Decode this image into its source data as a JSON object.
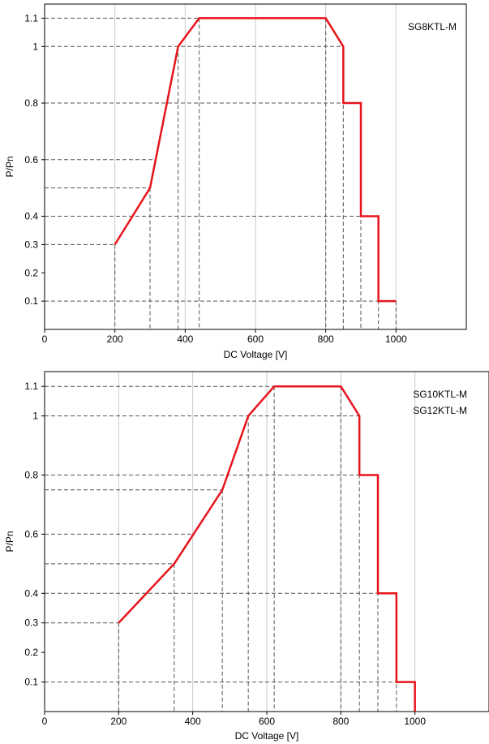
{
  "chart_data": [
    {
      "type": "line",
      "annotation": [
        "SG8KTL-M"
      ],
      "xlabel": "DC Voltage [V]",
      "ylabel": "P/Pn",
      "xlim": [
        0,
        1200
      ],
      "ylim": [
        0,
        1.15
      ],
      "x_ticks": [
        0,
        200,
        400,
        600,
        800,
        1000
      ],
      "x_gridlines": [
        200,
        300,
        380,
        400,
        440,
        600,
        800,
        850,
        900,
        950,
        1000
      ],
      "y_ticks": [
        0.1,
        0.2,
        0.3,
        0.4,
        0.6,
        0.8,
        1,
        1.1
      ],
      "grid": true,
      "line_color": "#e8141b",
      "series": [
        {
          "x": [
            200,
            300,
            380,
            440,
            800,
            850,
            850,
            900,
            900,
            950,
            950,
            1000
          ],
          "y": [
            0.3,
            0.5,
            1.0,
            1.1,
            1.1,
            1.0,
            0.8,
            0.8,
            0.4,
            0.4,
            0.1,
            0.1
          ]
        }
      ]
    },
    {
      "type": "line",
      "annotation": [
        "SG10KTL-M",
        "SG12KTL-M"
      ],
      "xlabel": "DC Voltage [V]",
      "ylabel": "P/Pn",
      "xlim": [
        0,
        1200
      ],
      "ylim": [
        0,
        1.15
      ],
      "x_ticks": [
        0,
        200,
        400,
        600,
        800,
        1000
      ],
      "x_gridlines": [
        200,
        350,
        400,
        480,
        550,
        600,
        620,
        800,
        850,
        900,
        950,
        1000
      ],
      "y_ticks": [
        0.1,
        0.2,
        0.3,
        0.4,
        0.6,
        0.8,
        1,
        1.1
      ],
      "grid": true,
      "line_color": "#e8141b",
      "series": [
        {
          "x": [
            200,
            350,
            480,
            550,
            620,
            800,
            850,
            850,
            900,
            900,
            950,
            950,
            1000,
            1000
          ],
          "y": [
            0.3,
            0.5,
            0.75,
            1.0,
            1.1,
            1.1,
            1.0,
            0.8,
            0.8,
            0.4,
            0.4,
            0.1,
            0.1,
            0.0
          ]
        }
      ]
    }
  ]
}
